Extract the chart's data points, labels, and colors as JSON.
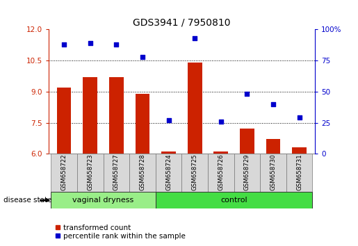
{
  "title": "GDS3941 / 7950810",
  "samples": [
    "GSM658722",
    "GSM658723",
    "GSM658727",
    "GSM658728",
    "GSM658724",
    "GSM658725",
    "GSM658726",
    "GSM658729",
    "GSM658730",
    "GSM658731"
  ],
  "red_values": [
    9.2,
    9.7,
    9.7,
    8.9,
    6.1,
    10.4,
    6.1,
    7.2,
    6.7,
    6.3
  ],
  "blue_values": [
    88,
    89,
    88,
    78,
    27,
    93,
    26,
    48,
    40,
    29
  ],
  "ylim_left": [
    6,
    12
  ],
  "ylim_right": [
    0,
    100
  ],
  "yticks_left": [
    6,
    7.5,
    9,
    10.5,
    12
  ],
  "yticks_right": [
    0,
    25,
    50,
    75,
    100
  ],
  "group1_label": "vaginal dryness",
  "group2_label": "control",
  "group1_indices": [
    0,
    1,
    2,
    3
  ],
  "group2_indices": [
    4,
    5,
    6,
    7,
    8,
    9
  ],
  "disease_state_label": "disease state",
  "legend_red": "transformed count",
  "legend_blue": "percentile rank within the sample",
  "bar_color": "#cc2200",
  "dot_color": "#0000cc",
  "group1_bg": "#99ee88",
  "group2_bg": "#44dd44",
  "tick_bg": "#d8d8d8",
  "axis_bg": "#ffffff",
  "left_yaxis_color": "#cc2200",
  "right_yaxis_color": "#0000cc",
  "figsize": [
    5.15,
    3.54
  ],
  "dpi": 100
}
